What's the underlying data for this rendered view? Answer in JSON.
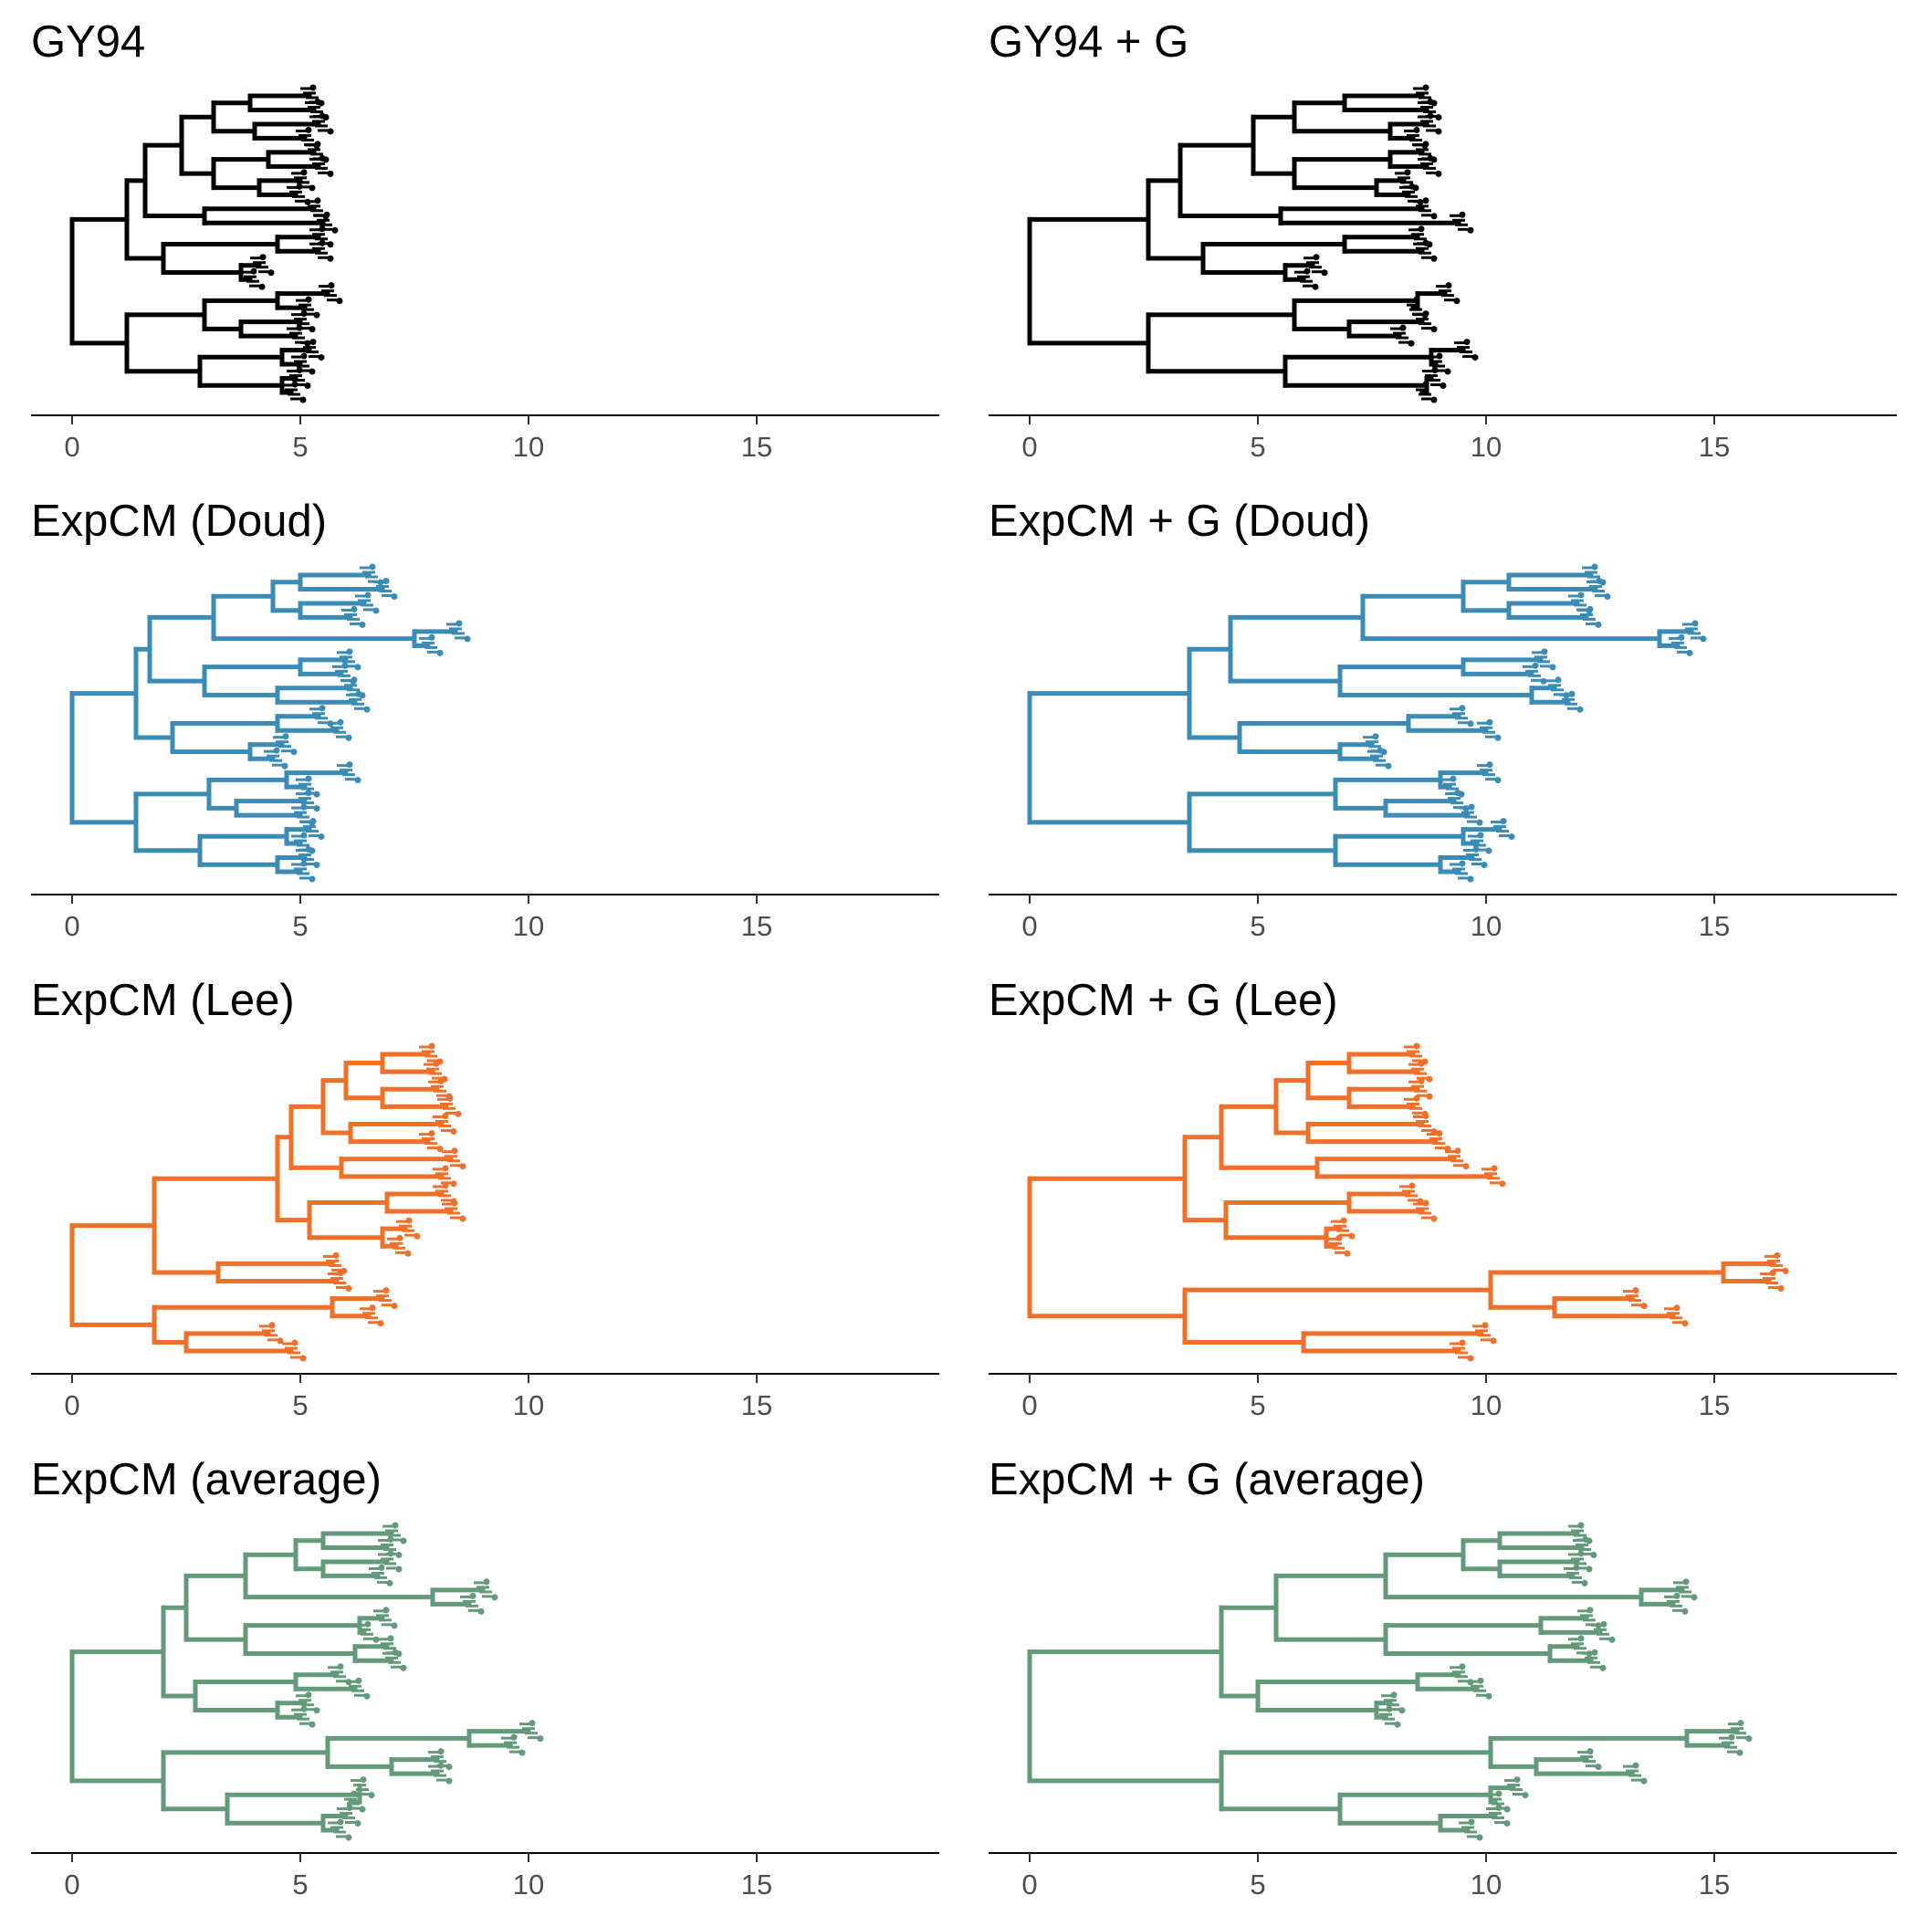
{
  "figure": {
    "background": "#ffffff"
  },
  "chart_data": [
    {
      "type": "tree",
      "title": "GY94",
      "color": "#000000",
      "xlim": [
        -0.9,
        19
      ],
      "xticks": [
        0,
        5,
        10,
        15
      ],
      "tree": [
        0,
        [
          1.2,
          [
            1.6,
            [
              2.4,
              [
                3.1,
                [
                  3.9,
                  5.2,
                  5.3
                ],
                [
                  4.0,
                  5.4,
                  5.1
                ]
              ],
              [
                3.1,
                [
                  4.3,
                  5.3,
                  5.4
                ],
                [
                  4.1,
                  5.0,
                  4.9
                ]
              ]
            ],
            [
              2.9,
              5.3,
              5.5
            ]
          ],
          [
            2.0,
            [
              4.5,
              5.4,
              5.4
            ],
            [
              3.7,
              4.1,
              3.9
            ]
          ]
        ],
        [
          1.2,
          [
            2.9,
            [
              4.5,
              5.6,
              5.1
            ],
            [
              3.7,
              5.0,
              4.9
            ]
          ],
          [
            2.8,
            [
              4.6,
              5.2,
              5.0
            ],
            [
              4.6,
              4.9,
              4.8
            ]
          ]
        ]
      ]
    },
    {
      "type": "tree",
      "title": "GY94 + G",
      "color": "#000000",
      "xlim": [
        -0.9,
        19
      ],
      "xticks": [
        0,
        5,
        10,
        15
      ],
      "tree": [
        0,
        [
          2.6,
          [
            3.3,
            [
              4.9,
              [
                5.8,
                [
                  6.9,
                  8.6,
                  8.7
                ],
                [
                  7.9,
                  8.7,
                  8.4
                ]
              ],
              [
                5.8,
                [
                  7.9,
                  8.6,
                  8.7
                ],
                [
                  7.6,
                  8.2,
                  8.3
                ]
              ]
            ],
            [
              5.5,
              8.6,
              9.4
            ]
          ],
          [
            3.8,
            [
              6.9,
              8.5,
              8.6
            ],
            [
              5.6,
              6.2,
              6.0
            ]
          ]
        ],
        [
          2.6,
          [
            5.8,
            [
              8.5,
              9.1,
              8.4
            ],
            [
              7.0,
              8.6,
              8.1
            ]
          ],
          [
            5.6,
            [
              8.8,
              9.5,
              8.9
            ],
            [
              8.7,
              8.8,
              8.6
            ]
          ]
        ]
      ]
    },
    {
      "type": "tree",
      "title": "ExpCM (Doud)",
      "color": "#3a8bb5",
      "xlim": [
        -0.9,
        19
      ],
      "xticks": [
        0,
        5,
        10,
        15
      ],
      "tree": [
        0,
        [
          1.4,
          [
            1.7,
            [
              3.1,
              [
                4.4,
                [
                  5.0,
                  6.5,
                  6.8
                ],
                [
                  5.0,
                  6.4,
                  6.1
                ]
              ],
              [
                7.5,
                8.4,
                7.8
              ]
            ],
            [
              2.9,
              [
                5.0,
                6.0,
                5.9
              ],
              [
                4.5,
                6.1,
                6.2
              ]
            ]
          ],
          [
            2.2,
            [
              4.5,
              5.4,
              5.8
            ],
            [
              3.9,
              4.6,
              4.4
            ]
          ]
        ],
        [
          1.4,
          [
            3.0,
            [
              4.7,
              6.0,
              5.1
            ],
            [
              3.6,
              5.1,
              5.0
            ]
          ],
          [
            2.8,
            [
              4.7,
              5.2,
              5.0
            ],
            [
              4.5,
              5.1,
              5.0
            ]
          ]
        ]
      ]
    },
    {
      "type": "tree",
      "title": "ExpCM + G (Doud)",
      "color": "#3a8bb5",
      "xlim": [
        -0.9,
        19
      ],
      "xticks": [
        0,
        5,
        10,
        15
      ],
      "tree": [
        0,
        [
          3.5,
          [
            4.4,
            [
              7.3,
              [
                9.5,
                [
                  10.5,
                  12.3,
                  12.4
                ],
                [
                  10.5,
                  12.0,
                  12.2
                ]
              ],
              [
                13.8,
                14.5,
                14.2
              ]
            ],
            [
              6.8,
              [
                9.5,
                11.2,
                11.0
              ],
              [
                11.0,
                11.5,
                11.8
              ]
            ]
          ],
          [
            4.6,
            [
              8.3,
              9.4,
              10.0
            ],
            [
              6.8,
              7.5,
              7.6
            ]
          ]
        ],
        [
          3.5,
          [
            6.7,
            [
              9.0,
              10.0,
              9.2
            ],
            [
              7.8,
              9.3,
              9.6
            ]
          ],
          [
            6.7,
            [
              9.5,
              10.3,
              9.8
            ],
            [
              9.0,
              9.7,
              9.4
            ]
          ]
        ]
      ]
    },
    {
      "type": "tree",
      "title": "ExpCM (Lee)",
      "color": "#f07029",
      "xlim": [
        -0.9,
        19
      ],
      "xticks": [
        0,
        5,
        10,
        15
      ],
      "tree": [
        0,
        [
          1.8,
          [
            4.5,
            [
              4.8,
              [
                5.5,
                [
                  6.0,
                  [
                    6.8,
                    7.8,
                    7.9
                  ],
                  [
                    6.8,
                    8.0,
                    8.2
                  ]
                ],
                [
                  6.1,
                  8.1,
                  7.8
                ]
              ],
              [
                5.9,
                8.3,
                8.1
              ]
            ],
            [
              5.2,
              [
                6.9,
                8.1,
                8.3
              ],
              [
                6.8,
                7.3,
                7.1
              ]
            ]
          ],
          [
            3.2,
            5.7,
            5.8
          ]
        ],
        [
          1.8,
          [
            5.7,
            6.8,
            6.5
          ],
          [
            2.5,
            4.3,
            4.8
          ]
        ]
      ]
    },
    {
      "type": "tree",
      "title": "ExpCM + G (Lee)",
      "color": "#f07029",
      "xlim": [
        -0.9,
        19
      ],
      "xticks": [
        0,
        5,
        10,
        15
      ],
      "tree": [
        0,
        [
          3.4,
          [
            4.2,
            [
              5.4,
              [
                6.1,
                [
                  7.0,
                  8.4,
                  8.5
                ],
                [
                  7.0,
                  8.5,
                  8.4
                ]
              ],
              [
                6.1,
                8.6,
                8.9
              ]
            ],
            [
              6.3,
              9.3,
              10.1
            ]
          ],
          [
            4.3,
            [
              7.0,
              8.3,
              8.6
            ],
            [
              6.5,
              6.8,
              6.7
            ]
          ]
        ],
        [
          3.4,
          [
            10.1,
            [
              15.2,
              16.3,
              16.2
            ],
            [
              11.5,
              13.2,
              14.1
            ]
          ],
          [
            6.0,
            9.9,
            9.4
          ]
        ]
      ]
    },
    {
      "type": "tree",
      "title": "ExpCM (average)",
      "color": "#629a7a",
      "xlim": [
        -0.9,
        19
      ],
      "xticks": [
        0,
        5,
        10,
        15
      ],
      "tree": [
        0,
        [
          2.0,
          [
            2.5,
            [
              3.8,
              [
                4.9,
                [
                  5.5,
                  7.0,
                  6.9
                ],
                [
                  5.5,
                  6.9,
                  6.7
                ]
              ],
              [
                7.9,
                9.0,
                8.7
              ]
            ],
            [
              3.8,
              [
                6.3,
                6.8,
                6.4
              ],
              [
                6.2,
                6.9,
                7.0
              ]
            ]
          ],
          [
            2.7,
            [
              4.9,
              5.8,
              6.2
            ],
            [
              4.5,
              5.1,
              5.0
            ]
          ]
        ],
        [
          2.0,
          [
            5.6,
            [
              8.7,
              10.0,
              9.6
            ],
            [
              7.0,
              8.0,
              8.0
            ]
          ],
          [
            3.4,
            [
              6.3,
              6.3,
              6.1
            ],
            [
              5.5,
              6.0,
              5.8
            ]
          ]
        ]
      ]
    },
    {
      "type": "tree",
      "title": "ExpCM + G (average)",
      "color": "#629a7a",
      "xlim": [
        -0.9,
        19
      ],
      "xticks": [
        0,
        5,
        10,
        15
      ],
      "tree": [
        0,
        [
          4.2,
          [
            5.4,
            [
              7.8,
              [
                9.5,
                [
                  10.3,
                  12.0,
                  12.1
                ],
                [
                  10.3,
                  12.0,
                  11.9
                ]
              ],
              [
                13.4,
                14.3,
                14.1
              ]
            ],
            [
              7.8,
              [
                11.2,
                12.2,
                12.5
              ],
              [
                11.4,
                12.0,
                12.3
              ]
            ]
          ],
          [
            5.0,
            [
              8.5,
              9.4,
              9.8
            ],
            [
              7.6,
              7.9,
              7.8
            ]
          ]
        ],
        [
          4.2,
          [
            10.1,
            [
              14.4,
              15.5,
              15.3
            ],
            [
              11.1,
              12.2,
              13.2
            ]
          ],
          [
            6.8,
            [
              10.1,
              10.6,
              10.2
            ],
            [
              9.0,
              10.2,
              9.6
            ]
          ]
        ]
      ]
    }
  ]
}
